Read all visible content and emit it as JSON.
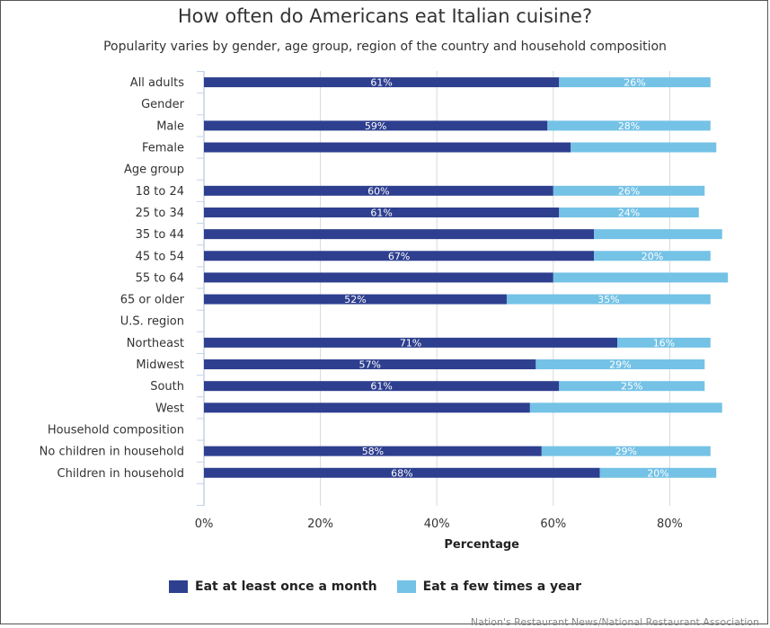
{
  "chart_data": {
    "type": "bar",
    "orientation": "horizontal",
    "stacked": true,
    "title": "How often do Americans eat Italian cuisine?",
    "subtitle": "Popularity varies by gender, age group, region of the country and household composition",
    "xlabel": "Percentage",
    "ylabel": "",
    "xlim": [
      0,
      90
    ],
    "xticks": [
      0,
      20,
      40,
      60,
      80
    ],
    "xtick_labels": [
      "0%",
      "20%",
      "40%",
      "60%",
      "80%"
    ],
    "grid": true,
    "legend_position": "bottom",
    "categories": [
      "All adults",
      "Gender",
      "Male",
      "Female",
      "Age group",
      "18 to 24",
      "25 to 34",
      "35 to 44",
      "45 to 54",
      "55 to 64",
      "65 or older",
      "U.S. region",
      "Northeast",
      "Midwest",
      "South",
      "West",
      "Household composition",
      "No children in household",
      "Children in household"
    ],
    "series": [
      {
        "name": "Eat at least once a month",
        "color": "#2e3f8f",
        "values": [
          61,
          null,
          59,
          63,
          null,
          60,
          61,
          67,
          67,
          60,
          52,
          null,
          71,
          57,
          61,
          56,
          null,
          58,
          68
        ],
        "labels": [
          "61%",
          "",
          "59%",
          "",
          "",
          "60%",
          "61%",
          "",
          "67%",
          "",
          "52%",
          "",
          "71%",
          "57%",
          "61%",
          "",
          "",
          "58%",
          "68%"
        ]
      },
      {
        "name": "Eat a few times a year",
        "color": "#74c2e6",
        "values": [
          26,
          null,
          28,
          25,
          null,
          26,
          24,
          22,
          20,
          30,
          35,
          null,
          16,
          29,
          25,
          33,
          null,
          29,
          20
        ],
        "labels": [
          "26%",
          "",
          "28%",
          "",
          "",
          "26%",
          "24%",
          "",
          "20%",
          "",
          "35%",
          "",
          "16%",
          "29%",
          "25%",
          "",
          "",
          "29%",
          "20%"
        ]
      }
    ]
  },
  "legend": {
    "items": [
      {
        "label": "Eat at least once a month",
        "color": "#2e3f8f"
      },
      {
        "label": "Eat a few times a year",
        "color": "#74c2e6"
      }
    ]
  },
  "credit": "Nation's Restaurant News/National Restaurant Association"
}
